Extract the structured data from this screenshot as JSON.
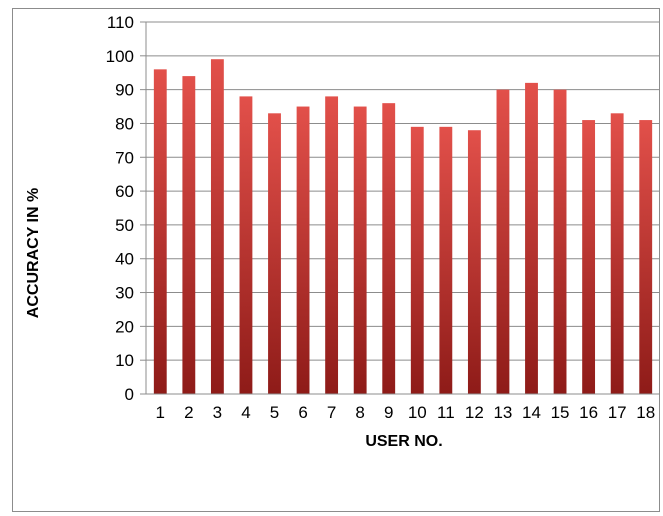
{
  "chart_data": {
    "type": "bar",
    "title": "",
    "xlabel": "USER NO.",
    "ylabel": "ACCURACY IN %",
    "categories": [
      "1",
      "2",
      "3",
      "4",
      "5",
      "6",
      "7",
      "8",
      "9",
      "10",
      "11",
      "12",
      "13",
      "14",
      "15",
      "16",
      "17",
      "18"
    ],
    "values": [
      96,
      94,
      99,
      88,
      83,
      85,
      88,
      85,
      86,
      79,
      79,
      78,
      90,
      92,
      90,
      81,
      83,
      81
    ],
    "ylim": [
      0,
      110
    ],
    "yticks": [
      0,
      10,
      20,
      30,
      40,
      50,
      60,
      70,
      80,
      90,
      100,
      110
    ],
    "grid": true,
    "legend": "none",
    "bar_color": "#c0392b",
    "bar_color_dark": "#8e1b18",
    "bar_color_light": "#e2504a"
  }
}
